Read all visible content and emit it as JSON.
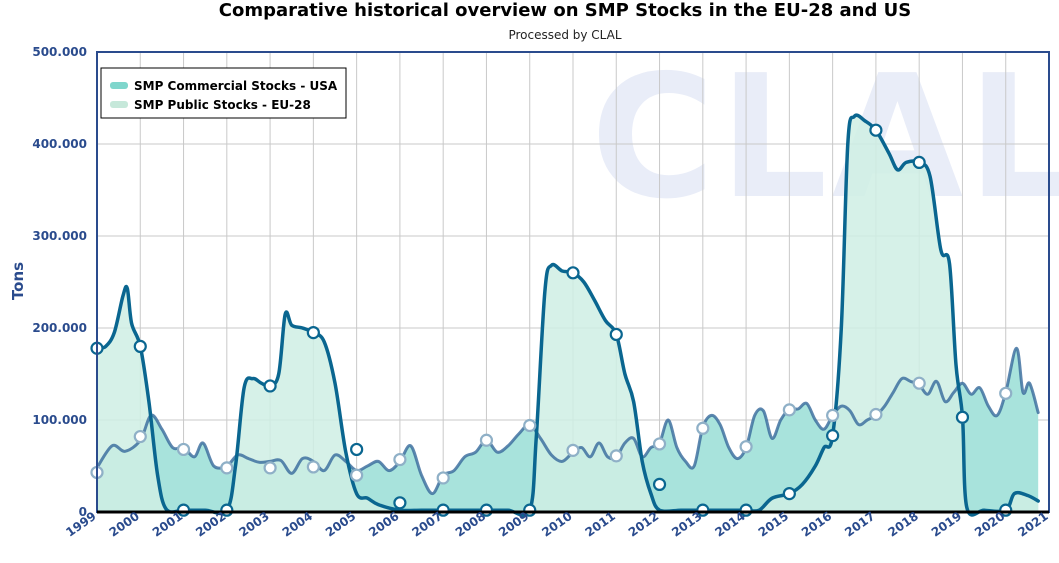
{
  "chart_data": {
    "type": "area",
    "title": "Comparative historical overview on SMP Stocks in the EU-28 and US",
    "subtitle": "Processed by CLAL",
    "ylabel": "Tons",
    "xlabel": "",
    "x_range": [
      1999,
      2021
    ],
    "ylim": [
      0,
      500000
    ],
    "yticks": [
      0,
      100000,
      200000,
      300000,
      400000,
      500000
    ],
    "ytick_labels": [
      "0",
      "100.000",
      "200.000",
      "300.000",
      "400.000",
      "500.000"
    ],
    "xtick_labels": [
      "1999",
      "2000",
      "2001",
      "2002",
      "2003",
      "2004",
      "2005",
      "2006",
      "2007",
      "2008",
      "2009",
      "2010",
      "2011",
      "2012",
      "2013",
      "2014",
      "2015",
      "2016",
      "2017",
      "2018",
      "2019",
      "2020",
      "2021"
    ],
    "grid": true,
    "legend_position": "top-left",
    "watermark": "CLAL",
    "series": [
      {
        "name": "SMP Commercial Stocks - USA",
        "fill_color": "#a8e3dc",
        "line_color": "#36699b",
        "marker_color": "#36699b",
        "points": [
          [
            1999.0,
            48000
          ],
          [
            1999.35,
            72000
          ],
          [
            1999.65,
            66000
          ],
          [
            2000.0,
            78000
          ],
          [
            2000.25,
            105000
          ],
          [
            2000.5,
            90000
          ],
          [
            2000.75,
            70000
          ],
          [
            2001.0,
            70000
          ],
          [
            2001.25,
            60000
          ],
          [
            2001.45,
            75000
          ],
          [
            2001.7,
            50000
          ],
          [
            2002.0,
            50000
          ],
          [
            2002.25,
            62000
          ],
          [
            2002.5,
            58000
          ],
          [
            2002.75,
            54000
          ],
          [
            2003.0,
            55000
          ],
          [
            2003.25,
            56000
          ],
          [
            2003.5,
            42000
          ],
          [
            2003.75,
            58000
          ],
          [
            2004.0,
            55000
          ],
          [
            2004.25,
            45000
          ],
          [
            2004.5,
            62000
          ],
          [
            2004.75,
            55000
          ],
          [
            2005.0,
            45000
          ],
          [
            2005.25,
            50000
          ],
          [
            2005.5,
            55000
          ],
          [
            2005.75,
            45000
          ],
          [
            2006.0,
            55000
          ],
          [
            2006.25,
            72000
          ],
          [
            2006.5,
            40000
          ],
          [
            2006.75,
            20000
          ],
          [
            2007.0,
            40000
          ],
          [
            2007.25,
            45000
          ],
          [
            2007.5,
            60000
          ],
          [
            2007.75,
            65000
          ],
          [
            2008.0,
            78000
          ],
          [
            2008.25,
            65000
          ],
          [
            2008.5,
            72000
          ],
          [
            2008.75,
            85000
          ],
          [
            2009.0,
            95000
          ],
          [
            2009.25,
            80000
          ],
          [
            2009.5,
            62000
          ],
          [
            2009.75,
            55000
          ],
          [
            2010.0,
            65000
          ],
          [
            2010.2,
            70000
          ],
          [
            2010.4,
            60000
          ],
          [
            2010.6,
            75000
          ],
          [
            2010.8,
            60000
          ],
          [
            2011.0,
            60000
          ],
          [
            2011.2,
            75000
          ],
          [
            2011.4,
            80000
          ],
          [
            2011.6,
            60000
          ],
          [
            2011.8,
            70000
          ],
          [
            2012.0,
            75000
          ],
          [
            2012.2,
            100000
          ],
          [
            2012.4,
            70000
          ],
          [
            2012.6,
            55000
          ],
          [
            2012.8,
            50000
          ],
          [
            2013.0,
            92000
          ],
          [
            2013.2,
            105000
          ],
          [
            2013.4,
            95000
          ],
          [
            2013.6,
            70000
          ],
          [
            2013.8,
            58000
          ],
          [
            2014.0,
            70000
          ],
          [
            2014.2,
            105000
          ],
          [
            2014.4,
            110000
          ],
          [
            2014.6,
            80000
          ],
          [
            2014.8,
            100000
          ],
          [
            2015.0,
            112000
          ],
          [
            2015.2,
            112000
          ],
          [
            2015.4,
            118000
          ],
          [
            2015.6,
            100000
          ],
          [
            2015.8,
            90000
          ],
          [
            2016.0,
            105000
          ],
          [
            2016.2,
            115000
          ],
          [
            2016.4,
            110000
          ],
          [
            2016.6,
            95000
          ],
          [
            2016.8,
            100000
          ],
          [
            2017.0,
            105000
          ],
          [
            2017.2,
            115000
          ],
          [
            2017.4,
            130000
          ],
          [
            2017.6,
            145000
          ],
          [
            2017.8,
            142000
          ],
          [
            2018.0,
            138000
          ],
          [
            2018.2,
            128000
          ],
          [
            2018.4,
            142000
          ],
          [
            2018.6,
            120000
          ],
          [
            2018.8,
            130000
          ],
          [
            2019.0,
            140000
          ],
          [
            2019.2,
            128000
          ],
          [
            2019.4,
            135000
          ],
          [
            2019.6,
            115000
          ],
          [
            2019.8,
            105000
          ],
          [
            2020.0,
            130000
          ],
          [
            2020.25,
            178000
          ],
          [
            2020.4,
            130000
          ],
          [
            2020.55,
            140000
          ],
          [
            2020.75,
            108000
          ]
        ],
        "markers": [
          [
            1999.0,
            43000
          ],
          [
            2000.0,
            82000
          ],
          [
            2001.0,
            68000
          ],
          [
            2002.0,
            48000
          ],
          [
            2003.0,
            48000
          ],
          [
            2004.0,
            49000
          ],
          [
            2005.0,
            40000
          ],
          [
            2006.0,
            57000
          ],
          [
            2007.0,
            37000
          ],
          [
            2008.0,
            78000
          ],
          [
            2009.0,
            94000
          ],
          [
            2010.0,
            67000
          ],
          [
            2011.0,
            61000
          ],
          [
            2012.0,
            74000
          ],
          [
            2013.0,
            91000
          ],
          [
            2014.0,
            71000
          ],
          [
            2015.0,
            111000
          ],
          [
            2016.0,
            105000
          ],
          [
            2017.0,
            106000
          ],
          [
            2018.0,
            140000
          ],
          [
            2019.0,
            103000
          ],
          [
            2020.0,
            129000
          ]
        ]
      },
      {
        "name": "SMP Public Stocks - EU-28",
        "fill_color": "#cfeee4",
        "line_color": "#0a6690",
        "marker_color": "#0a6690",
        "points": [
          [
            1999.0,
            178000
          ],
          [
            1999.2,
            180000
          ],
          [
            1999.4,
            195000
          ],
          [
            1999.6,
            235000
          ],
          [
            1999.7,
            243000
          ],
          [
            1999.8,
            205000
          ],
          [
            2000.0,
            180000
          ],
          [
            2000.2,
            120000
          ],
          [
            2000.4,
            40000
          ],
          [
            2000.6,
            3000
          ],
          [
            2001.0,
            2000
          ],
          [
            2001.5,
            2000
          ],
          [
            2002.0,
            2000
          ],
          [
            2002.2,
            50000
          ],
          [
            2002.4,
            135000
          ],
          [
            2002.6,
            145000
          ],
          [
            2002.8,
            140000
          ],
          [
            2003.0,
            137000
          ],
          [
            2003.2,
            150000
          ],
          [
            2003.35,
            215000
          ],
          [
            2003.5,
            203000
          ],
          [
            2003.75,
            200000
          ],
          [
            2004.0,
            195000
          ],
          [
            2004.25,
            185000
          ],
          [
            2004.5,
            140000
          ],
          [
            2004.75,
            65000
          ],
          [
            2005.0,
            20000
          ],
          [
            2005.25,
            15000
          ],
          [
            2005.5,
            8000
          ],
          [
            2006.0,
            2000
          ],
          [
            2006.5,
            2000
          ],
          [
            2007.0,
            2000
          ],
          [
            2007.5,
            2000
          ],
          [
            2008.0,
            2000
          ],
          [
            2008.5,
            2000
          ],
          [
            2009.0,
            2000
          ],
          [
            2009.15,
            80000
          ],
          [
            2009.35,
            240000
          ],
          [
            2009.5,
            268000
          ],
          [
            2009.75,
            262000
          ],
          [
            2010.0,
            260000
          ],
          [
            2010.25,
            250000
          ],
          [
            2010.5,
            230000
          ],
          [
            2010.75,
            208000
          ],
          [
            2011.0,
            193000
          ],
          [
            2011.2,
            150000
          ],
          [
            2011.4,
            120000
          ],
          [
            2011.6,
            55000
          ],
          [
            2011.8,
            20000
          ],
          [
            2012.0,
            2000
          ],
          [
            2012.5,
            2000
          ],
          [
            2013.0,
            2000
          ],
          [
            2013.5,
            2000
          ],
          [
            2014.0,
            2000
          ],
          [
            2014.3,
            2000
          ],
          [
            2014.6,
            15000
          ],
          [
            2015.0,
            20000
          ],
          [
            2015.3,
            30000
          ],
          [
            2015.6,
            50000
          ],
          [
            2015.8,
            70000
          ],
          [
            2016.0,
            83000
          ],
          [
            2016.2,
            200000
          ],
          [
            2016.35,
            400000
          ],
          [
            2016.5,
            430000
          ],
          [
            2016.75,
            425000
          ],
          [
            2017.0,
            415000
          ],
          [
            2017.3,
            390000
          ],
          [
            2017.5,
            372000
          ],
          [
            2017.7,
            380000
          ],
          [
            2018.0,
            380000
          ],
          [
            2018.25,
            365000
          ],
          [
            2018.5,
            285000
          ],
          [
            2018.7,
            270000
          ],
          [
            2018.85,
            160000
          ],
          [
            2019.0,
            103000
          ],
          [
            2019.1,
            5000
          ],
          [
            2019.5,
            2000
          ],
          [
            2020.0,
            2000
          ],
          [
            2020.2,
            20000
          ],
          [
            2020.5,
            18000
          ],
          [
            2020.75,
            12000
          ]
        ],
        "markers": [
          [
            1999.0,
            178000
          ],
          [
            2000.0,
            180000
          ],
          [
            2001.0,
            2000
          ],
          [
            2002.0,
            2000
          ],
          [
            2003.0,
            137000
          ],
          [
            2004.0,
            195000
          ],
          [
            2005.0,
            68000
          ],
          [
            2006.0,
            10000
          ],
          [
            2007.0,
            2000
          ],
          [
            2008.0,
            2000
          ],
          [
            2009.0,
            2000
          ],
          [
            2010.0,
            260000
          ],
          [
            2011.0,
            193000
          ],
          [
            2012.0,
            30000
          ],
          [
            2013.0,
            2000
          ],
          [
            2014.0,
            2000
          ],
          [
            2015.0,
            20000
          ],
          [
            2016.0,
            83000
          ],
          [
            2017.0,
            415000
          ],
          [
            2018.0,
            380000
          ],
          [
            2019.0,
            103000
          ],
          [
            2020.0,
            2000
          ]
        ]
      }
    ]
  }
}
